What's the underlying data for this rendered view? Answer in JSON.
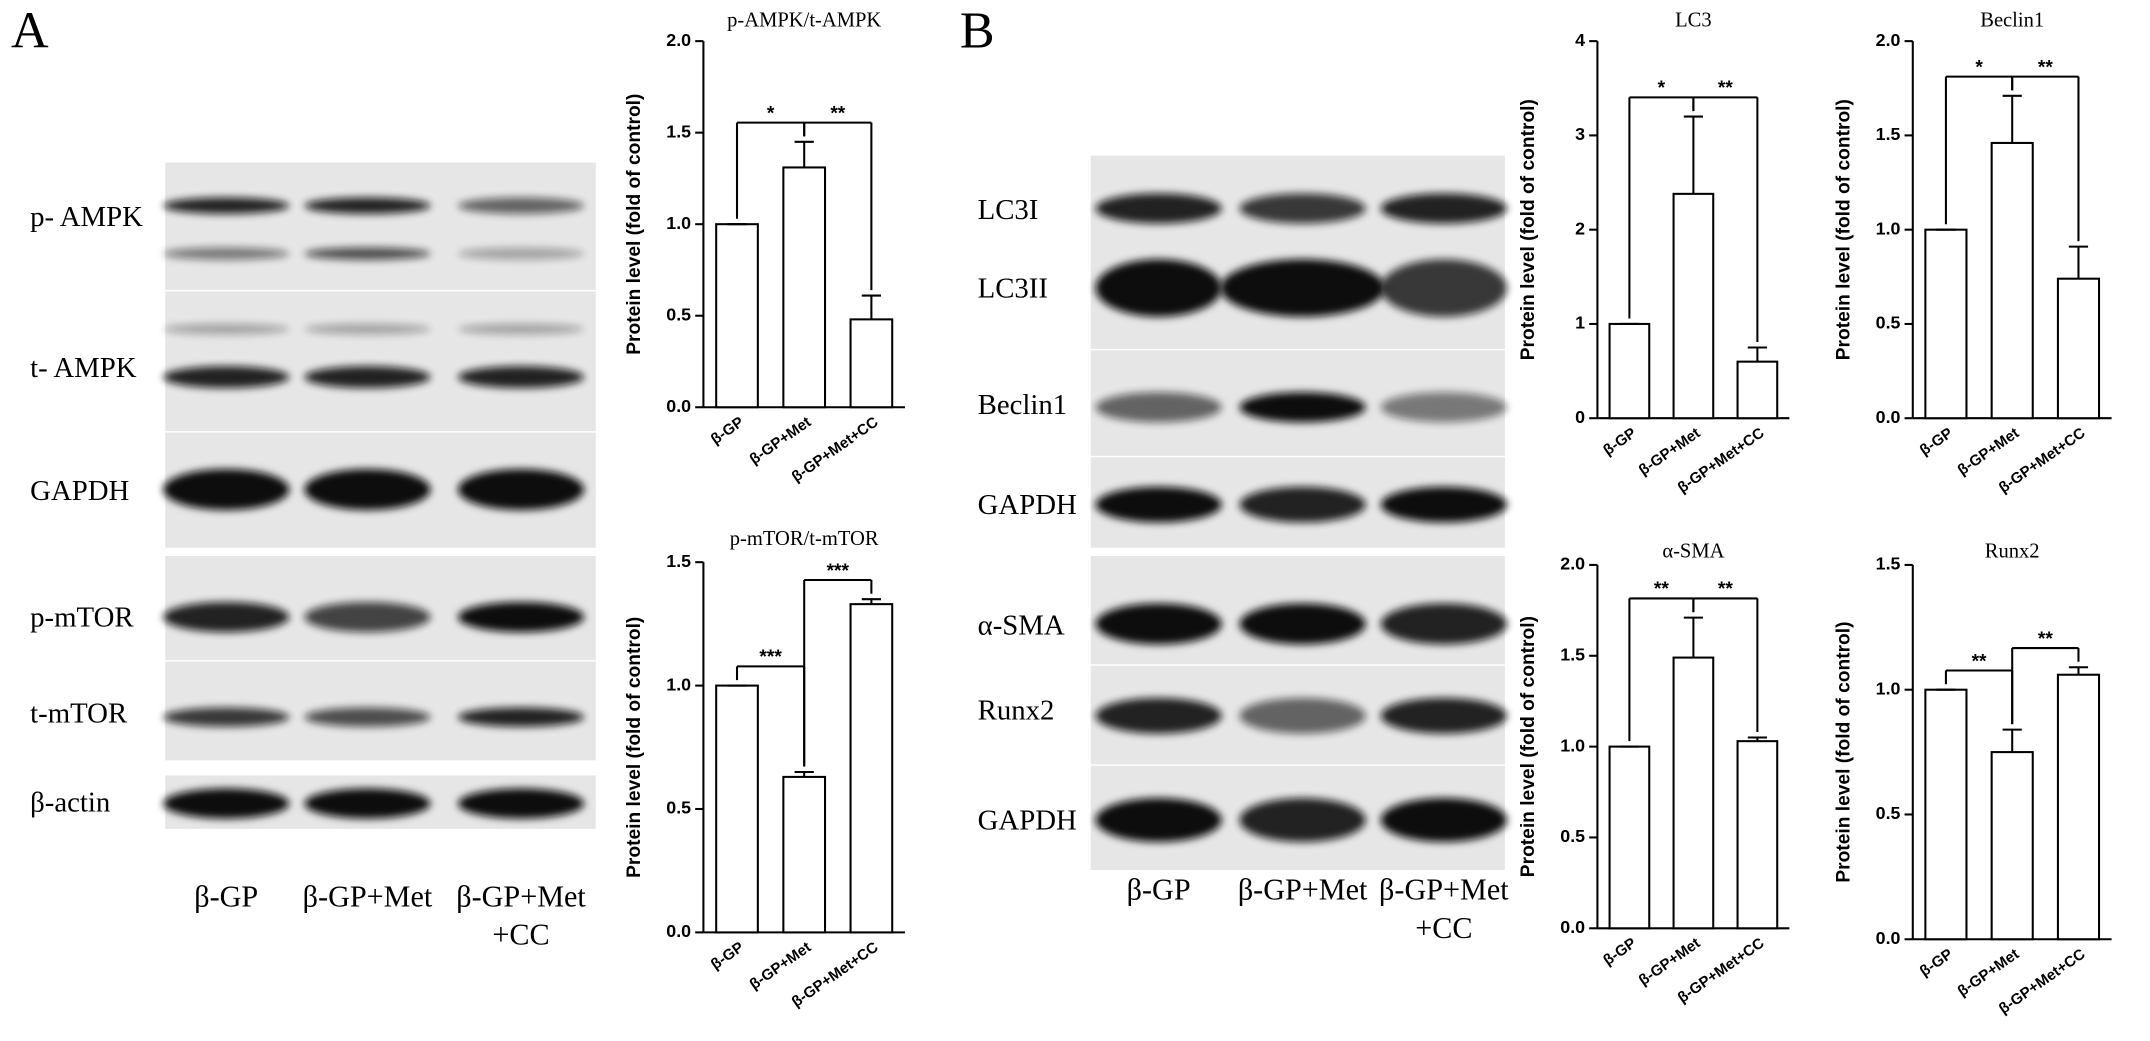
{
  "figure": {
    "panel_labels": [
      "A",
      "B"
    ],
    "blots": [
      {
        "rows": [
          "p- AMPK",
          "t- AMPK",
          "GAPDH",
          "p-mTOR",
          "t-mTOR",
          "β-actin"
        ],
        "lanes": [
          "β-GP",
          "β-GP+Met",
          "β-GP+Met +CC"
        ]
      },
      {
        "rows": [
          "LC3I",
          "LC3II",
          "Beclin1",
          "GAPDH",
          "α-SMA",
          "Runx2",
          "GAPDH"
        ],
        "lanes": [
          "β-GP",
          "β-GP+Met",
          "β-GP+Met +CC"
        ]
      }
    ]
  },
  "chart_data": [
    {
      "type": "bar",
      "title": "p-AMPK/t-AMPK",
      "y_label": "Protein level (fold of control)",
      "categories": [
        "β-GP",
        "β-GP+Met",
        "β-GP+Met+CC"
      ],
      "values": [
        1.0,
        1.31,
        0.48
      ],
      "errors": [
        0,
        0.14,
        0.13
      ],
      "color": "#ffffff",
      "edgecolor": "#000000",
      "ylim": [
        0,
        2
      ],
      "yticks": [
        {
          "value": 0,
          "label": "0.0"
        },
        0.5,
        {
          "value": 1,
          "label": "1.0"
        },
        1.5,
        {
          "value": 2,
          "label": "2.0"
        }
      ],
      "comparisons": [
        {
          "pair": [
            0,
            1
          ],
          "label": "*"
        },
        {
          "pair": [
            1,
            2
          ],
          "label": "**"
        }
      ]
    },
    {
      "type": "bar",
      "title": "p-mTOR/t-mTOR",
      "y_label": "Protein level (fold of control)",
      "categories": [
        "β-GP",
        "β-GP+Met",
        "β-GP+Met+CC"
      ],
      "values": [
        1.0,
        0.63,
        1.33
      ],
      "errors": [
        0,
        0.02,
        0.02
      ],
      "color": "#ffffff",
      "edgecolor": "#000000",
      "ylim": [
        0,
        1.5
      ],
      "yticks": [
        {
          "value": 0,
          "label": "0.0"
        },
        0.5,
        {
          "value": 1,
          "label": "1.0"
        },
        1.5
      ],
      "comparisons": [
        {
          "pair": [
            0,
            1
          ],
          "label": "***"
        },
        {
          "pair": [
            1,
            2
          ],
          "label": "***"
        }
      ]
    },
    {
      "type": "bar",
      "title": "LC3",
      "y_label": "Protein level (fold of control)",
      "categories": [
        "β-GP",
        "β-GP+Met",
        "β-GP+Met+CC"
      ],
      "values": [
        1.0,
        2.38,
        0.6
      ],
      "errors": [
        0,
        0.82,
        0.15
      ],
      "color": "#ffffff",
      "edgecolor": "#000000",
      "ylim": [
        0,
        4
      ],
      "yticks": [
        0,
        1,
        2,
        3,
        4
      ],
      "comparisons": [
        {
          "pair": [
            0,
            1
          ],
          "label": "*"
        },
        {
          "pair": [
            1,
            2
          ],
          "label": "**"
        }
      ]
    },
    {
      "type": "bar",
      "title": "Beclin1",
      "y_label": "Protein level (fold of control)",
      "categories": [
        "β-GP",
        "β-GP+Met",
        "β-GP+Met+CC"
      ],
      "values": [
        1.0,
        1.46,
        0.74
      ],
      "errors": [
        0,
        0.25,
        0.17
      ],
      "color": "#ffffff",
      "edgecolor": "#000000",
      "ylim": [
        0,
        2
      ],
      "yticks": [
        {
          "value": 0,
          "label": "0.0"
        },
        0.5,
        {
          "value": 1,
          "label": "1.0"
        },
        1.5,
        {
          "value": 2,
          "label": "2.0"
        }
      ],
      "comparisons": [
        {
          "pair": [
            0,
            1
          ],
          "label": "*"
        },
        {
          "pair": [
            1,
            2
          ],
          "label": "**"
        }
      ]
    },
    {
      "type": "bar",
      "title": "α-SMA",
      "y_label": "Protein level (fold of control)",
      "categories": [
        "β-GP",
        "β-GP+Met",
        "β-GP+Met+CC"
      ],
      "values": [
        1.0,
        1.49,
        1.03
      ],
      "errors": [
        0,
        0.22,
        0.02
      ],
      "color": "#ffffff",
      "edgecolor": "#000000",
      "ylim": [
        0,
        2
      ],
      "yticks": [
        {
          "value": 0,
          "label": "0.0"
        },
        0.5,
        {
          "value": 1,
          "label": "1.0"
        },
        1.5,
        {
          "value": 2,
          "label": "2.0"
        }
      ],
      "comparisons": [
        {
          "pair": [
            0,
            1
          ],
          "label": "**"
        },
        {
          "pair": [
            1,
            2
          ],
          "label": "**"
        }
      ]
    },
    {
      "type": "bar",
      "title": "Runx2",
      "y_label": "Protein level (fold of control)",
      "categories": [
        "β-GP",
        "β-GP+Met",
        "β-GP+Met+CC"
      ],
      "values": [
        1.0,
        0.75,
        1.06
      ],
      "errors": [
        0,
        0.09,
        0.03
      ],
      "color": "#ffffff",
      "edgecolor": "#000000",
      "ylim": [
        0,
        1.5
      ],
      "yticks": [
        {
          "value": 0,
          "label": "0.0"
        },
        0.5,
        {
          "value": 1,
          "label": "1.0"
        },
        1.5
      ],
      "comparisons": [
        {
          "pair": [
            0,
            1
          ],
          "label": "**"
        },
        {
          "pair": [
            1,
            2
          ],
          "label": "**"
        }
      ]
    }
  ]
}
